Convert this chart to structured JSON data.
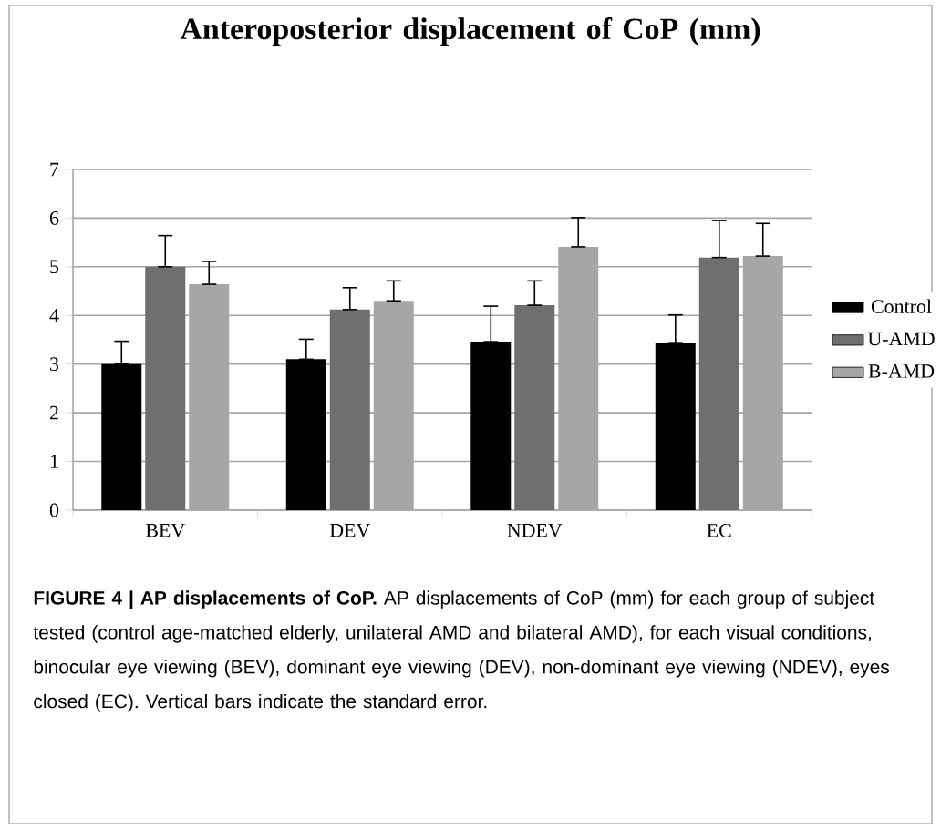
{
  "chart_data": {
    "type": "bar",
    "title": "Anteroposterior displacement of CoP (mm)",
    "categories": [
      "BEV",
      "DEV",
      "NDEV",
      "EC"
    ],
    "series": [
      {
        "name": "Control",
        "color": "#000000",
        "values": [
          3.0,
          3.1,
          3.46,
          3.44
        ],
        "errors": [
          [
            3.0,
            3.47
          ],
          [
            3.1,
            3.51
          ],
          [
            3.46,
            4.19
          ],
          [
            3.44,
            4.01
          ]
        ]
      },
      {
        "name": "U-AMD",
        "color": "#6f6f6f",
        "values": [
          5.0,
          4.12,
          4.21,
          5.19
        ],
        "errors": [
          [
            5.0,
            5.64
          ],
          [
            4.12,
            4.57
          ],
          [
            4.21,
            4.71
          ],
          [
            5.19,
            5.95
          ]
        ]
      },
      {
        "name": "B-AMD",
        "color": "#a6a6a6",
        "values": [
          4.64,
          4.3,
          5.41,
          5.22
        ],
        "errors": [
          [
            4.64,
            5.11
          ],
          [
            4.3,
            4.71
          ],
          [
            5.41,
            6.01
          ],
          [
            5.22,
            5.89
          ]
        ]
      }
    ],
    "ylim": [
      0,
      7
    ],
    "yticks": [
      0,
      1,
      2,
      3,
      4,
      5,
      6,
      7
    ],
    "grid": "y",
    "legend": "right",
    "annotations": [
      "**FIGURE 4 | AP displacements of CoP.** AP displacements of CoP (mm) for each group of subject tested (control age-matched elderly, unilateral AMD and bilateral AMD), for each visual conditions, binocular eye viewing (BEV), dominant eye viewing (DEV), non-dominant eye viewing (NDEV), eyes closed (EC). Vertical bars indicate the standard error."
    ]
  }
}
